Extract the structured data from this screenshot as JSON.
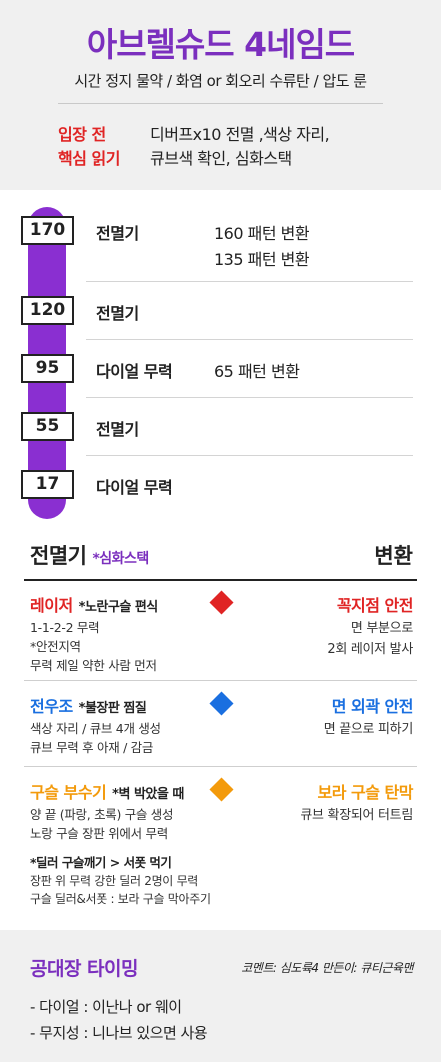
{
  "header": {
    "title": "아브렐슈드 4네임드",
    "subtitle": "시간 정지 물약 / 화염 or 회오리 수류탄 / 압도 룬",
    "before_label_1": "입장 전",
    "before_label_2": "핵심 읽기",
    "before_text_1": "디버프x10 전멸 ,색상 자리,",
    "before_text_2": "큐브색 확인, 심화스택"
  },
  "timeline": {
    "rows": [
      {
        "hp": "170",
        "pattern": "전멸기",
        "notes": [
          "160 패턴 변환",
          "135 패턴 변환"
        ]
      },
      {
        "hp": "120",
        "pattern": "전멸기",
        "notes": []
      },
      {
        "hp": "95",
        "pattern": "다이얼 무력",
        "notes": [
          "65 패턴 변환"
        ]
      },
      {
        "hp": "55",
        "pattern": "전멸기",
        "notes": []
      },
      {
        "hp": "17",
        "pattern": "다이얼 무력",
        "notes": []
      }
    ]
  },
  "mechanics": {
    "title": "전멸기",
    "title_sub": "*심화스택",
    "right_title": "변환",
    "items": [
      {
        "name": "레이저",
        "name_color": "#e02424",
        "tag": "*노란구슬 편식",
        "desc": "1-1-2-2 무력\n*안전지역\n무력 제일 약한 사람 먼저",
        "diamond_color": "#e02424",
        "right_title": "꼭지점 안전",
        "right_color": "#e02424",
        "right_desc": "면 부분으로\n2회 레이저 발사"
      },
      {
        "name": "전우조",
        "name_color": "#1a6fe0",
        "tag": "*불장판 찜질",
        "desc": "색상 자리 / 큐브 4개 생성\n큐브 무력 후 아재 / 감금",
        "diamond_color": "#1a6fe0",
        "right_title": "면 외곽 안전",
        "right_color": "#1a6fe0",
        "right_desc": "면 끝으로 피하기"
      },
      {
        "name": "구슬 부수기",
        "name_color": "#f39a0b",
        "tag": "*벽 박았을 때",
        "desc": "양 끝 (파랑, 초록) 구슬 생성\n노랑 구슬 장판 위에서 무력",
        "diamond_color": "#f39a0b",
        "right_title": "보라 구슬 탄막",
        "right_color": "#f39a0b",
        "right_desc": "큐브 확장되어 터트림"
      }
    ],
    "dealer_title": "*딜러 구슬깨기 > 서폿 먹기",
    "dealer_desc": "장판 위 무력 강한 딜러 2명이 무력\n구슬 딜러&서폿 : 보라 구슬 막아주기"
  },
  "footer": {
    "title": "공대장 타이밍",
    "credit": "코멘트: 심도륙4 만든이: 큐티근육맨",
    "items": [
      "- 다이얼 : 이난나 or 웨이",
      "- 무지성 : 니나브 있으면 사용"
    ]
  },
  "colors": {
    "accent": "#7b2fbe",
    "timeline_bar": "#8a2fd1",
    "red": "#e02424",
    "blue": "#1a6fe0",
    "orange": "#f39a0b"
  }
}
